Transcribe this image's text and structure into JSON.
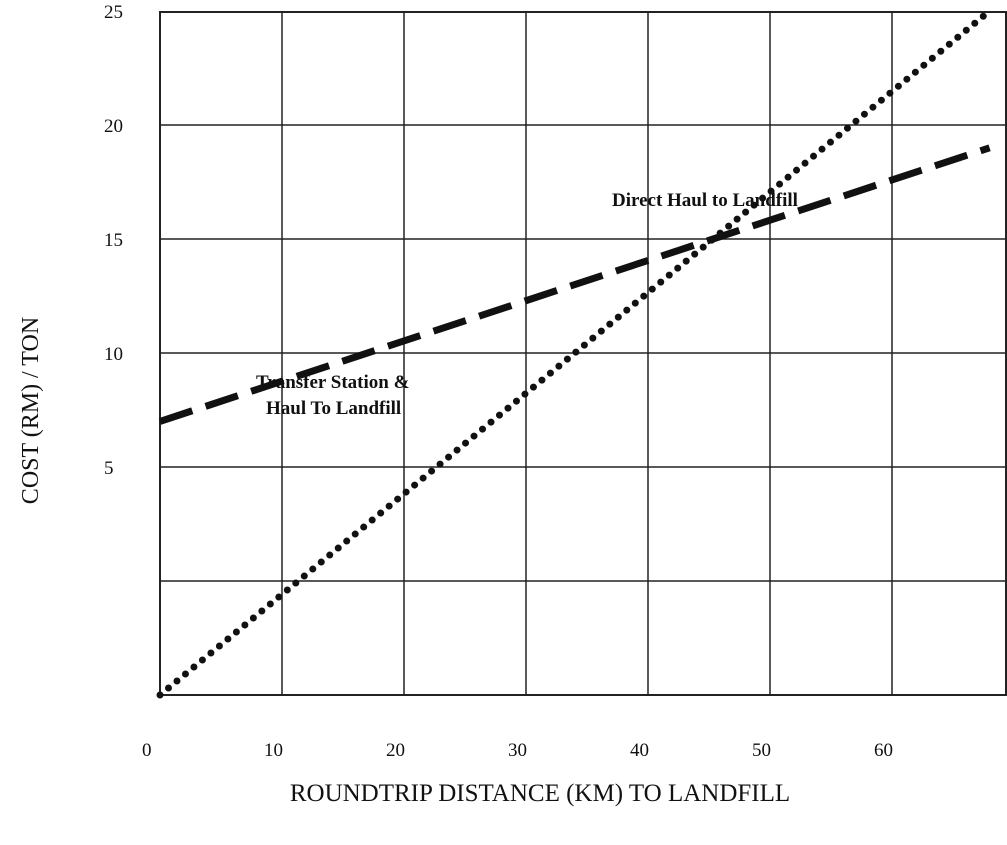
{
  "chart_data": {
    "type": "line",
    "title": "",
    "xlabel": "ROUNDTRIP DISTANCE (KM) TO LANDFILL",
    "ylabel": "COST (RM) / TON",
    "x_ticks": [
      "0",
      "10",
      "20",
      "30",
      "40",
      "50",
      "60"
    ],
    "y_ticks": [
      "5",
      "10",
      "15",
      "20",
      "25"
    ],
    "xlim": [
      0,
      70
    ],
    "ylim": [
      -5,
      30
    ],
    "grid": true,
    "legend": "none",
    "series": [
      {
        "name": "Direct Haul to Landfill",
        "style": "dotted",
        "x": [
          0,
          68
        ],
        "y": [
          -5,
          25
        ]
      },
      {
        "name": "Transfer Station & Haul To Landfill",
        "style": "dashed",
        "x": [
          0,
          68
        ],
        "y": [
          7,
          19
        ]
      }
    ],
    "annotations": [
      {
        "text": "Direct Haul to Landfill",
        "series": 0
      },
      {
        "text": "Transfer Station &",
        "series": 1
      },
      {
        "text": "Haul To Landfill",
        "series": 1
      }
    ]
  }
}
